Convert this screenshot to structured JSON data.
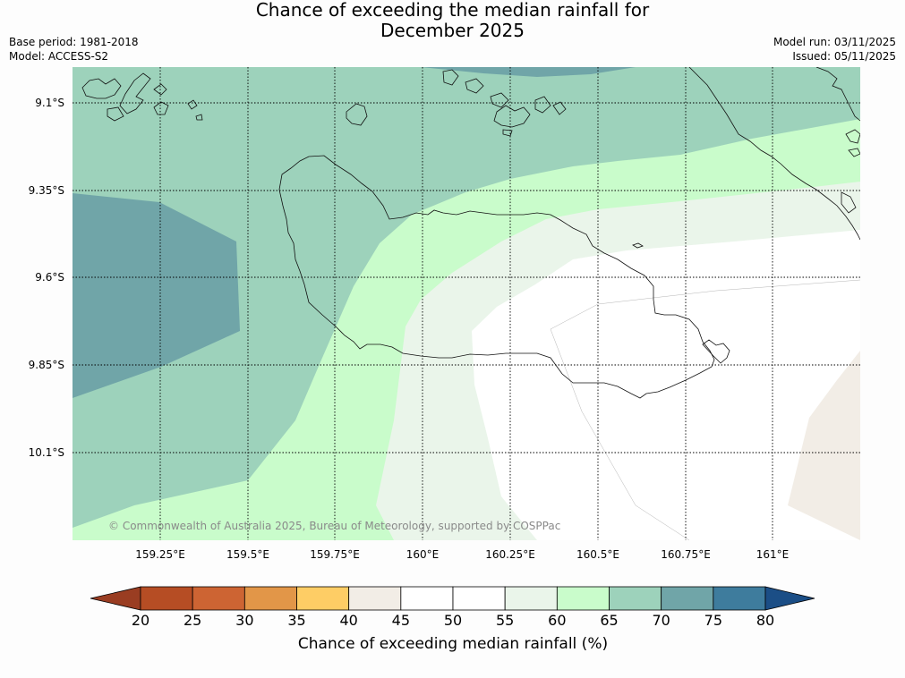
{
  "title": {
    "line1": "Chance of exceeding the median rainfall for",
    "line2": "December 2025"
  },
  "meta": {
    "base_period": "Base period: 1981-2018",
    "model": "Model: ACCESS-S2",
    "model_run": "Model run: 03/11/2025",
    "issued": "Issued: 05/11/2025"
  },
  "map": {
    "lat_ticks": [
      "9.1°S",
      "9.35°S",
      "9.6°S",
      "9.85°S",
      "10.1°S"
    ],
    "lon_ticks": [
      "159.25°E",
      "159.5°E",
      "159.75°E",
      "160°E",
      "160.25°E",
      "160.5°E",
      "160.75°E",
      "161°E"
    ],
    "attribution": "© Commonwealth of Australia 2025, Bureau of Meteorology, supported by COSPPac",
    "colors": {
      "c40_45": "#f2ede6",
      "c45_55": "#ffffff",
      "c55_60": "#eaf5ea",
      "c60_65": "#c9fccb",
      "c65_70": "#9dd2bb",
      "c70_75": "#70a5a8"
    }
  },
  "colorbar": {
    "ticks": [
      "20",
      "25",
      "30",
      "35",
      "40",
      "45",
      "50",
      "55",
      "60",
      "65",
      "70",
      "75",
      "80"
    ],
    "colors": [
      "#9a3d22",
      "#b64d24",
      "#cd6433",
      "#e29648",
      "#fecd65",
      "#f2ede6",
      "#ffffff",
      "#ffffff",
      "#eaf5ea",
      "#c9fccb",
      "#9dd2bb",
      "#70a5a8",
      "#3e7c9d",
      "#1b4e86"
    ],
    "label": "Chance of exceeding median rainfall (%)"
  }
}
